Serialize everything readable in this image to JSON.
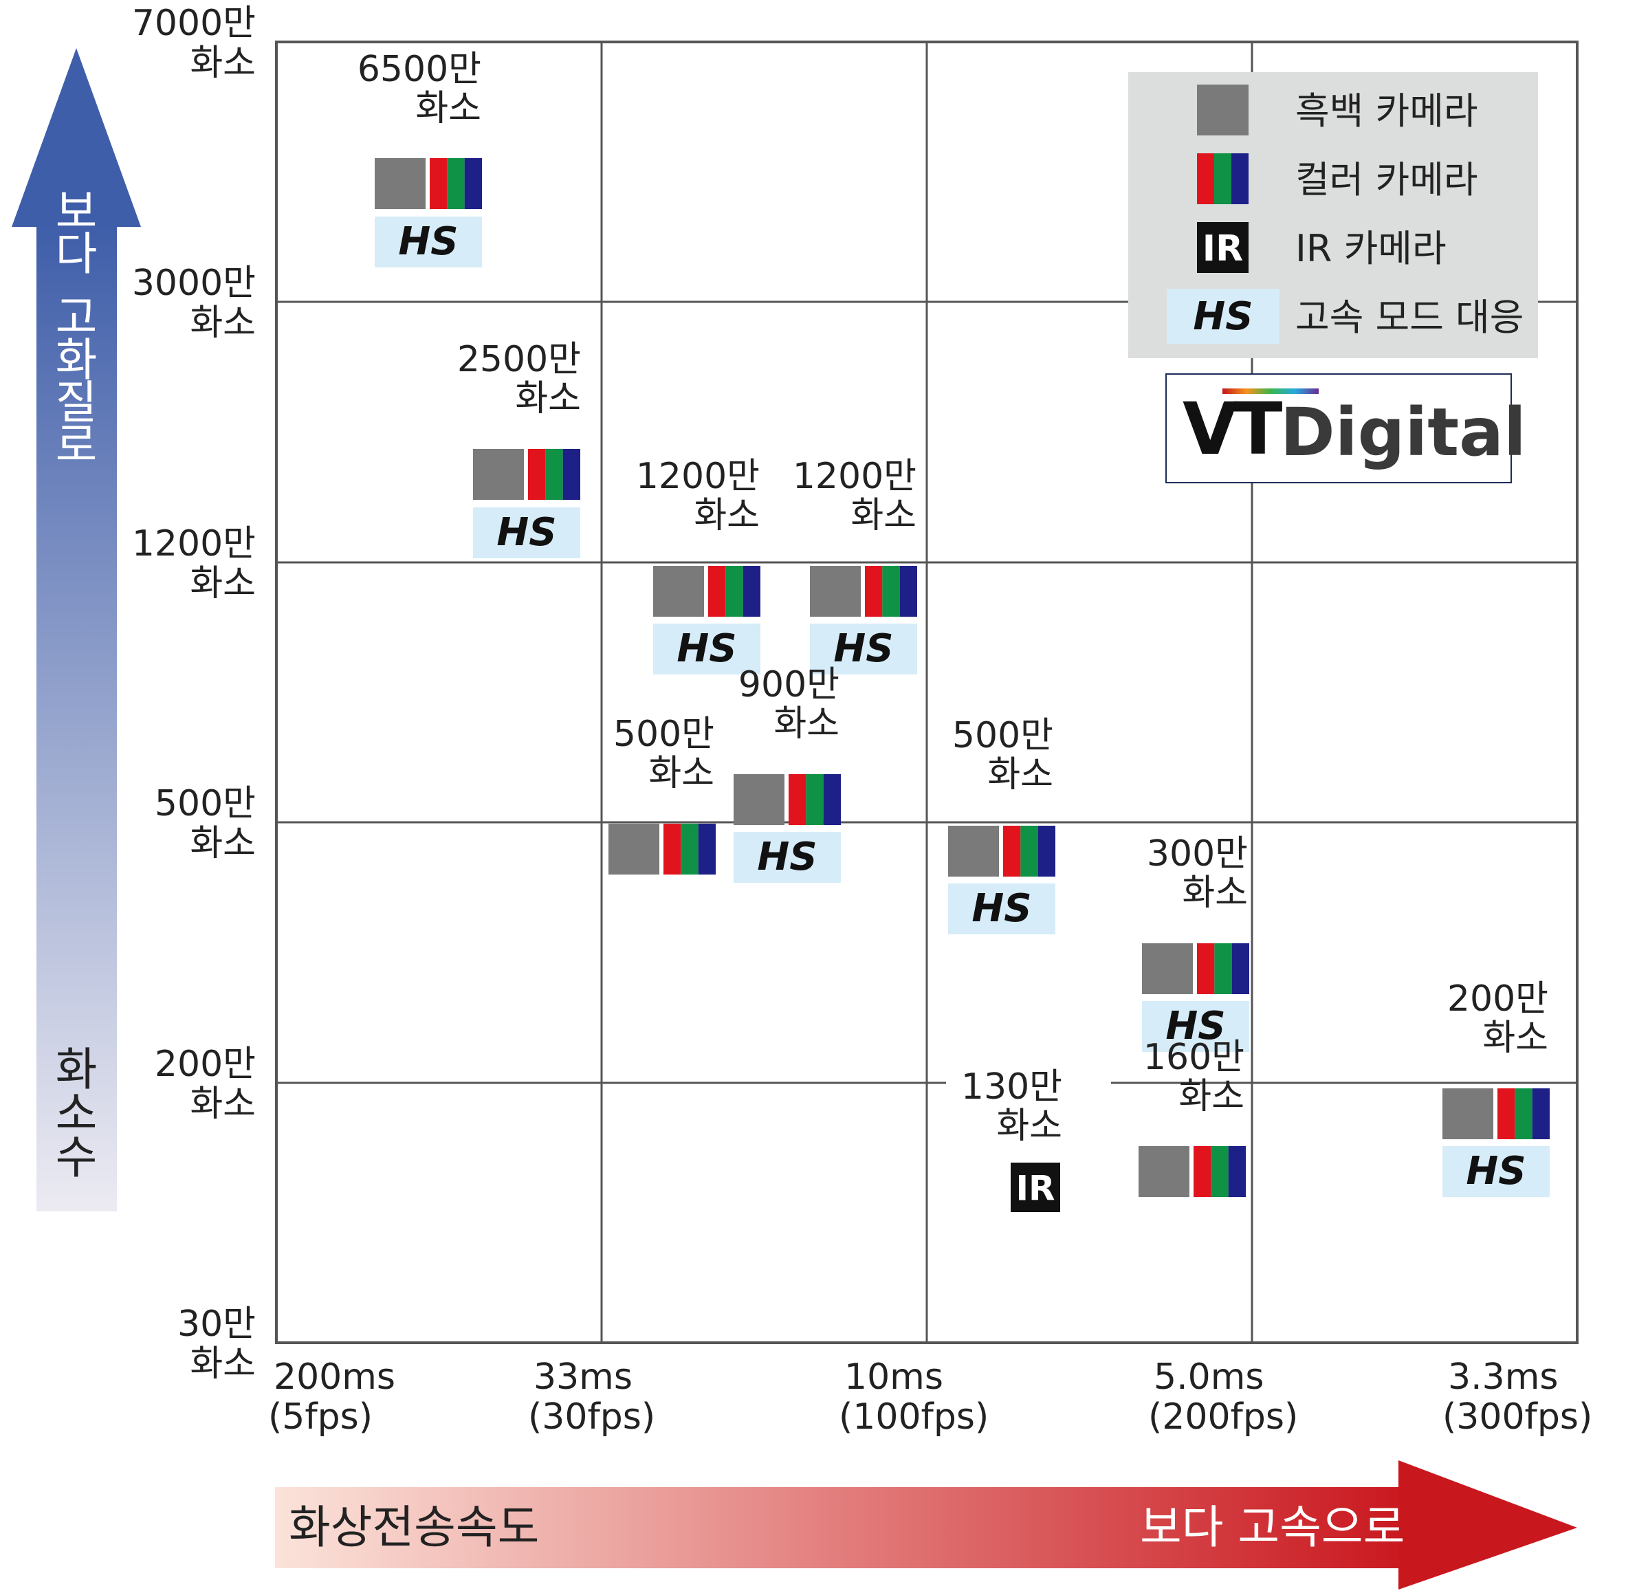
{
  "chart_data": {
    "type": "scatter",
    "x_axis": {
      "label": "화상전송속도",
      "direction_label": "보다 고속으로",
      "ticks": [
        {
          "line1": "200ms",
          "line2": "(5fps)"
        },
        {
          "line1": "33ms",
          "line2": "(30fps)"
        },
        {
          "line1": "10ms",
          "line2": "(100fps)"
        },
        {
          "line1": "5.0ms",
          "line2": "(200fps)"
        },
        {
          "line1": "3.3ms",
          "line2": "(300fps)"
        }
      ]
    },
    "y_axis": {
      "label": "화소수",
      "direction_label": "보다 고화질로",
      "ticks": [
        {
          "line1": "30만",
          "line2": "화소"
        },
        {
          "line1": "200만",
          "line2": "화소"
        },
        {
          "line1": "500만",
          "line2": "화소"
        },
        {
          "line1": "1200만",
          "line2": "화소"
        },
        {
          "line1": "3000만",
          "line2": "화소"
        },
        {
          "line1": "7000만",
          "line2": "화소"
        }
      ]
    },
    "grid": true,
    "points": [
      {
        "line1": "6500만",
        "line2": "화소",
        "mono": true,
        "color": true,
        "hs": true,
        "ir": false
      },
      {
        "line1": "2500만",
        "line2": "화소",
        "mono": true,
        "color": true,
        "hs": true,
        "ir": false
      },
      {
        "line1": "1200만",
        "line2": "화소",
        "mono": true,
        "color": true,
        "hs": true,
        "ir": false
      },
      {
        "line1": "1200만",
        "line2": "화소",
        "mono": true,
        "color": true,
        "hs": true,
        "ir": false
      },
      {
        "line1": "500만",
        "line2": "화소",
        "mono": true,
        "color": true,
        "hs": false,
        "ir": false
      },
      {
        "line1": "900만",
        "line2": "화소",
        "mono": true,
        "color": true,
        "hs": true,
        "ir": false
      },
      {
        "line1": "500만",
        "line2": "화소",
        "mono": true,
        "color": true,
        "hs": true,
        "ir": false
      },
      {
        "line1": "300만",
        "line2": "화소",
        "mono": true,
        "color": true,
        "hs": true,
        "ir": false
      },
      {
        "line1": "130만",
        "line2": "화소",
        "mono": false,
        "color": false,
        "hs": false,
        "ir": true
      },
      {
        "line1": "160만",
        "line2": "화소",
        "mono": true,
        "color": true,
        "hs": false,
        "ir": false
      },
      {
        "line1": "200만",
        "line2": "화소",
        "mono": true,
        "color": true,
        "hs": true,
        "ir": false
      }
    ],
    "legend": {
      "position": "top-right",
      "items": [
        {
          "key": "mono",
          "label": "흑백 카메라"
        },
        {
          "key": "color",
          "label": "컬러 카메라"
        },
        {
          "key": "ir",
          "label": "IR 카메라"
        },
        {
          "key": "hs",
          "label": "고속 모드 대응"
        }
      ]
    },
    "badges": {
      "hs": "HS",
      "ir": "IR"
    },
    "logo": {
      "text_vt": "VT",
      "text_digital": "Digital"
    },
    "colors": {
      "mono": "#7a7a7a",
      "red": "#e1141e",
      "green": "#0f9246",
      "blue": "#1d2087",
      "hs_bg": "#d6ecf8",
      "legend_bg": "#dcdddd",
      "grid": "#555555",
      "y_arrow_top": "#3f5ea9",
      "y_arrow_bottom": "#ecebf2",
      "x_arrow_left": "#fbe3da",
      "x_arrow_right": "#c9171e"
    }
  }
}
